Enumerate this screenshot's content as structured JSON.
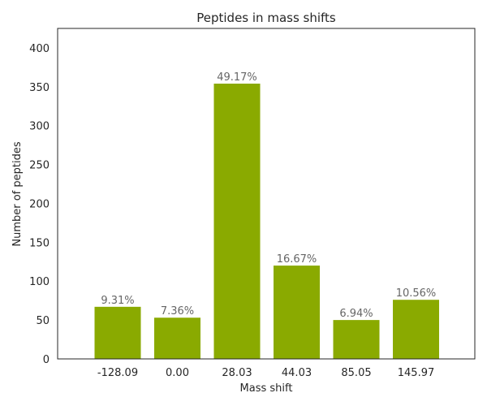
{
  "chart_data": {
    "type": "bar",
    "title": "Peptides in mass shifts",
    "xlabel": "Mass shift",
    "ylabel": "Number of peptides",
    "categories": [
      "-128.09",
      "0.00",
      "28.03",
      "44.03",
      "85.05",
      "145.97"
    ],
    "values": [
      67,
      53,
      354,
      120,
      50,
      76
    ],
    "data_labels": [
      "9.31%",
      "7.36%",
      "49.17%",
      "16.67%",
      "6.94%",
      "10.56%"
    ],
    "ylim": [
      0,
      425
    ],
    "yticks": [
      0,
      50,
      100,
      150,
      200,
      250,
      300,
      350,
      400
    ],
    "grid": false,
    "bar_color": "#8aaa00"
  }
}
